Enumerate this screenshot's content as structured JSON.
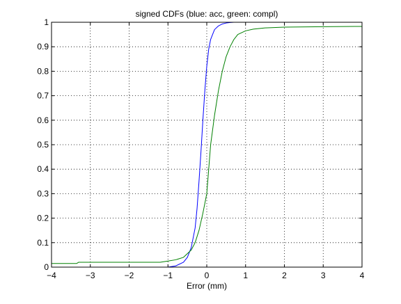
{
  "chart_data": {
    "type": "line",
    "title": "signed CDFs (blue: acc, green: compl)",
    "xlabel": "Error (mm)",
    "ylabel": "",
    "xlim": [
      -4,
      4
    ],
    "ylim": [
      0,
      1
    ],
    "xticks": [
      -4,
      -3,
      -2,
      -1,
      0,
      1,
      2,
      3,
      4
    ],
    "yticks": [
      0,
      0.1,
      0.2,
      0.3,
      0.4,
      0.5,
      0.6,
      0.7,
      0.8,
      0.9,
      1
    ],
    "grid": true,
    "legend": "none",
    "colors": {
      "acc": "#0000ff",
      "compl": "#008000"
    },
    "series": [
      {
        "x": [
          -2.55,
          -1.0,
          -0.8,
          -0.6,
          -0.5,
          -0.4,
          -0.3,
          -0.25,
          -0.2,
          -0.15,
          -0.1,
          -0.05,
          0.0,
          0.05,
          0.1,
          0.15,
          0.2,
          0.3,
          0.4,
          0.5,
          0.6,
          0.7,
          0.8
        ],
        "y": [
          0.0,
          0.0,
          0.005,
          0.02,
          0.04,
          0.08,
          0.16,
          0.24,
          0.35,
          0.47,
          0.6,
          0.72,
          0.82,
          0.89,
          0.93,
          0.95,
          0.97,
          0.985,
          0.993,
          0.997,
          0.999,
          1.0,
          1.0
        ]
      },
      {
        "x": [
          -4.0,
          -3.35,
          -3.3,
          -1.2,
          -1.0,
          -0.8,
          -0.6,
          -0.4,
          -0.3,
          -0.2,
          -0.1,
          0.0,
          0.05,
          0.1,
          0.2,
          0.3,
          0.4,
          0.5,
          0.6,
          0.7,
          0.8,
          1.0,
          1.2,
          1.5,
          2.0,
          3.0,
          4.0
        ],
        "y": [
          0.015,
          0.015,
          0.02,
          0.02,
          0.025,
          0.03,
          0.04,
          0.07,
          0.1,
          0.15,
          0.22,
          0.3,
          0.4,
          0.5,
          0.62,
          0.72,
          0.8,
          0.86,
          0.9,
          0.93,
          0.95,
          0.965,
          0.972,
          0.977,
          0.98,
          0.982,
          0.983
        ]
      }
    ]
  }
}
